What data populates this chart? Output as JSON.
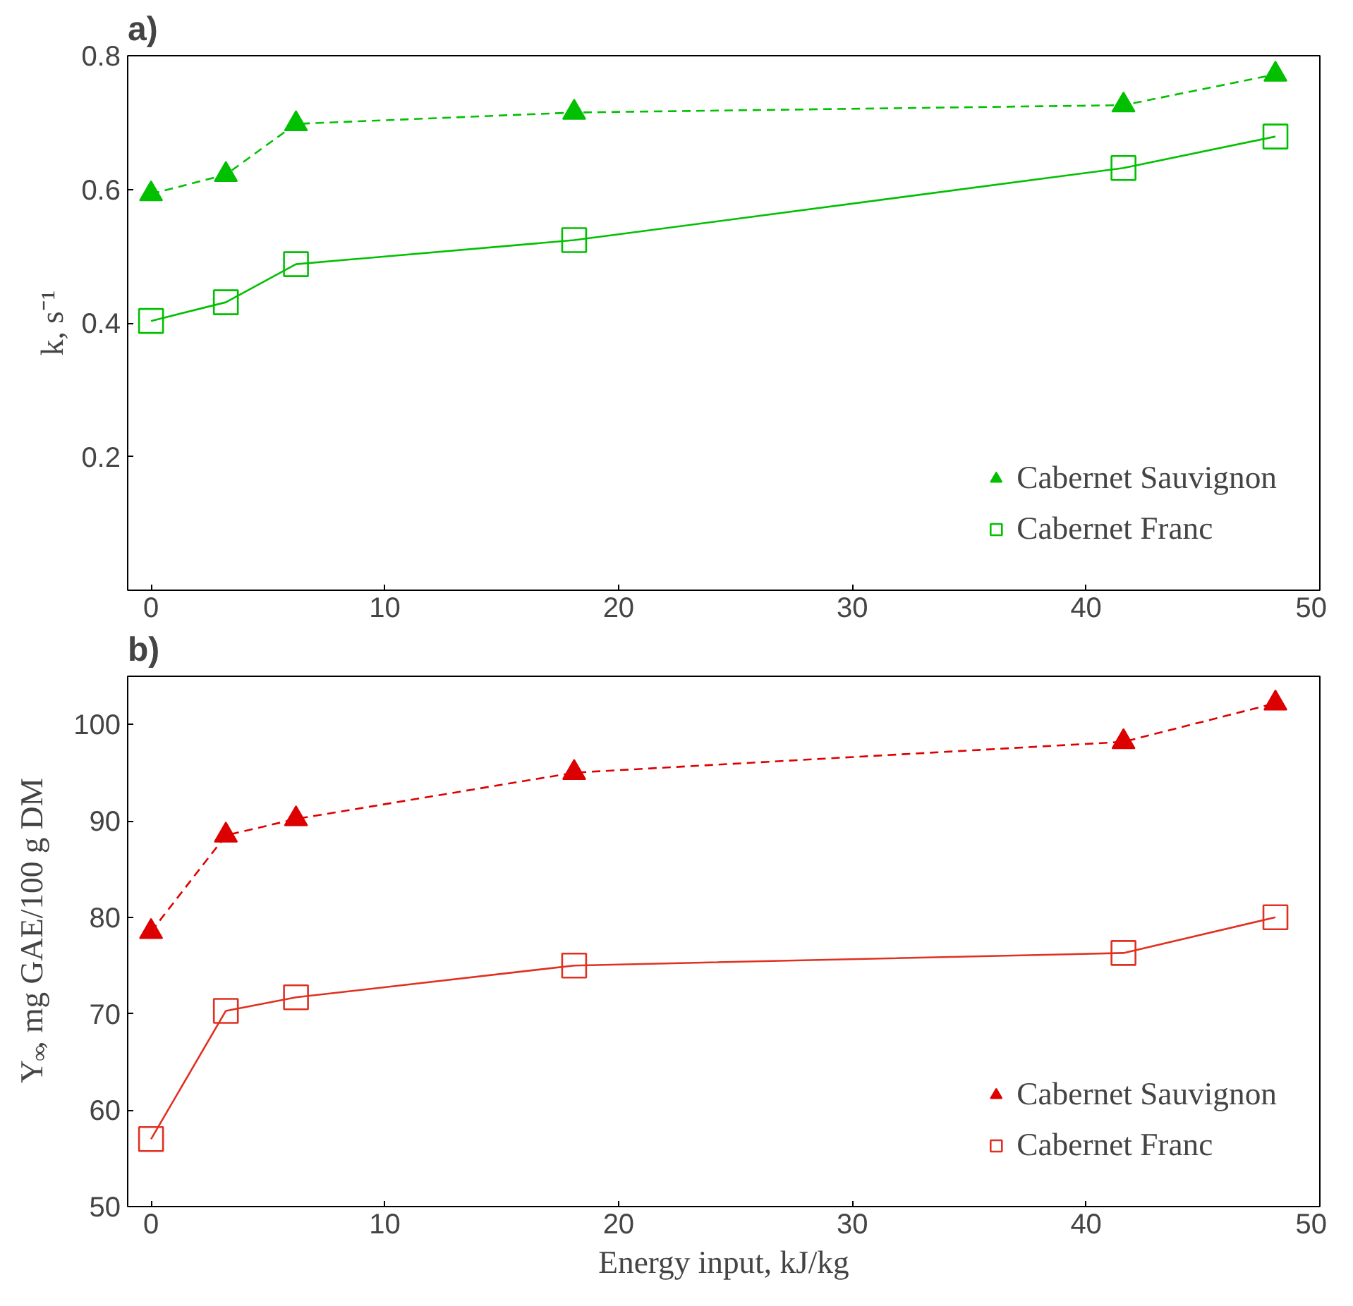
{
  "chart_data": [
    {
      "type": "line",
      "title": "a)",
      "ylabel": "k, s⁻¹",
      "x": [
        0,
        3.2,
        6.2,
        18.1,
        41.6,
        48.1
      ],
      "xlim": [
        -1,
        50
      ],
      "xticks": [
        0,
        10,
        20,
        30,
        40,
        50
      ],
      "ylim": [
        0,
        0.8
      ],
      "yticks": [
        0.2,
        0.4,
        0.6,
        0.8
      ],
      "grid": false,
      "legend": "bottom right",
      "series": [
        {
          "name": "Cabernet Sauvignon",
          "color": "#00c000",
          "marker": "triangle",
          "line_style": "dashed",
          "values": [
            0.593,
            0.622,
            0.698,
            0.715,
            0.726,
            0.772
          ]
        },
        {
          "name": "Cabernet Franc",
          "color": "#00c000",
          "marker": "square",
          "line_style": "solid",
          "values": [
            0.403,
            0.431,
            0.488,
            0.524,
            0.632,
            0.679
          ]
        }
      ]
    },
    {
      "type": "line",
      "title": "b)",
      "xlabel": "Energy input, kJ/kg",
      "ylabel": "Y$_{∞}$, mg GAE/100 g DM",
      "x": [
        0,
        3.2,
        6.2,
        18.1,
        41.6,
        48.1
      ],
      "xlim": [
        -1,
        50
      ],
      "xticks": [
        0,
        10,
        20,
        30,
        40,
        50
      ],
      "ylim": [
        50,
        105
      ],
      "yticks": [
        50,
        60,
        70,
        80,
        90,
        100
      ],
      "grid": false,
      "legend": "bottom right",
      "series": [
        {
          "name": "Cabernet Sauvignon",
          "color": "#dd0000",
          "marker": "triangle",
          "line_style": "dashed",
          "values": [
            78.5,
            88.5,
            90.2,
            95,
            98.2,
            102.2
          ]
        },
        {
          "name": "Cabernet Franc",
          "color": "#e03020",
          "marker": "square",
          "line_style": "solid",
          "values": [
            57,
            70.3,
            71.7,
            75,
            76.3,
            80
          ]
        }
      ]
    }
  ]
}
